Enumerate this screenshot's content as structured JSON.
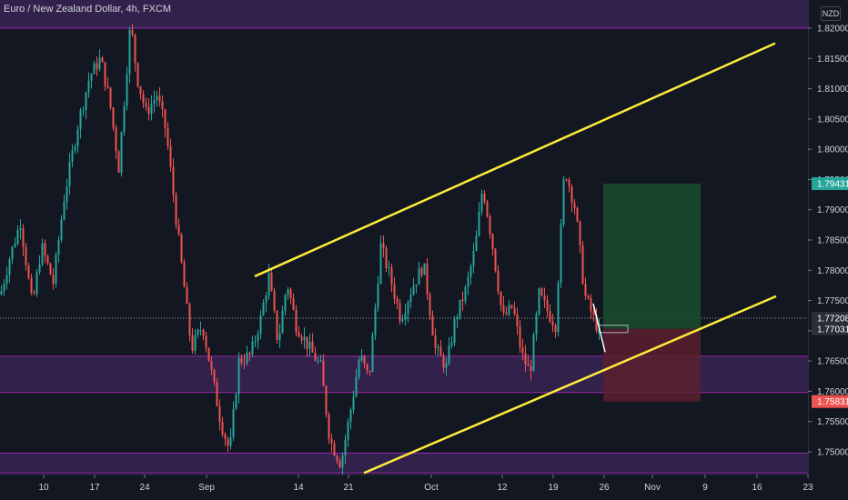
{
  "header": {
    "title": "Euro / New Zealand Dollar, 4h, FXCM"
  },
  "currency_badge": "NZD",
  "price_axis": {
    "ticks": [
      "1.82000",
      "1.81500",
      "1.81000",
      "1.80500",
      "1.80000",
      "1.79500",
      "1.79000",
      "1.78500",
      "1.78000",
      "1.77500",
      "1.77000",
      "1.76500",
      "1.76000",
      "1.75500",
      "1.75000"
    ],
    "markers": {
      "take_profit": {
        "label": "1.79431",
        "color": "#26a69a"
      },
      "last_price": {
        "label": "1.77208",
        "color": "#2a2e39"
      },
      "entry": {
        "label": "1.77031",
        "color": "#2a2e39"
      },
      "stop_loss": {
        "label": "1.75831",
        "color": "#ef5350"
      }
    }
  },
  "time_axis": {
    "labels": [
      "10",
      "17",
      "24",
      "Sep",
      "14",
      "21",
      "Oct",
      "12",
      "19",
      "26",
      "Nov",
      "9",
      "16",
      "23"
    ]
  },
  "colors": {
    "background": "#131722",
    "up_candle": "#26a69a",
    "down_candle": "#ef5350",
    "zone_fill": "#4a2a6e",
    "zone_line": "#9c27b0",
    "trendline": "#ffeb3b",
    "profit_box": "#1b4d2e",
    "loss_box": "#5a1f2e"
  },
  "chart_data": {
    "type": "candlestick",
    "title": "Euro / New Zealand Dollar, 4h, FXCM",
    "ylim": [
      1.7465,
      1.8225
    ],
    "close_path": [
      [
        0,
        1.776
      ],
      [
        10,
        1.782
      ],
      [
        22,
        1.788
      ],
      [
        35,
        1.774
      ],
      [
        45,
        1.784
      ],
      [
        58,
        1.778
      ],
      [
        70,
        1.792
      ],
      [
        85,
        1.804
      ],
      [
        98,
        1.812
      ],
      [
        110,
        1.815
      ],
      [
        120,
        1.808
      ],
      [
        130,
        1.797
      ],
      [
        143,
        1.821
      ],
      [
        150,
        1.812
      ],
      [
        160,
        1.806
      ],
      [
        172,
        1.809
      ],
      [
        182,
        1.803
      ],
      [
        195,
        1.786
      ],
      [
        210,
        1.767
      ],
      [
        222,
        1.771
      ],
      [
        232,
        1.763
      ],
      [
        242,
        1.755
      ],
      [
        252,
        1.75
      ],
      [
        262,
        1.765
      ],
      [
        275,
        1.766
      ],
      [
        286,
        1.772
      ],
      [
        295,
        1.779
      ],
      [
        305,
        1.768
      ],
      [
        315,
        1.778
      ],
      [
        325,
        1.771
      ],
      [
        340,
        1.767
      ],
      [
        352,
        1.764
      ],
      [
        362,
        1.752
      ],
      [
        374,
        1.748
      ],
      [
        385,
        1.757
      ],
      [
        395,
        1.766
      ],
      [
        405,
        1.762
      ],
      [
        418,
        1.784
      ],
      [
        428,
        1.779
      ],
      [
        440,
        1.772
      ],
      [
        452,
        1.777
      ],
      [
        465,
        1.781
      ],
      [
        478,
        1.767
      ],
      [
        490,
        1.764
      ],
      [
        500,
        1.772
      ],
      [
        512,
        1.777
      ],
      [
        522,
        1.784
      ],
      [
        530,
        1.794
      ],
      [
        540,
        1.785
      ],
      [
        552,
        1.772
      ],
      [
        563,
        1.774
      ],
      [
        573,
        1.766
      ],
      [
        582,
        1.763
      ],
      [
        592,
        1.776
      ],
      [
        602,
        1.773
      ],
      [
        610,
        1.771
      ],
      [
        620,
        1.797
      ],
      [
        632,
        1.79
      ],
      [
        642,
        1.776
      ],
      [
        652,
        1.772
      ],
      [
        658,
        1.77
      ]
    ],
    "trend_channel": {
      "upper": [
        [
          280,
          1.779
        ],
        [
          852,
          1.8175
        ]
      ],
      "lower": [
        [
          400,
          1.7465
        ],
        [
          853,
          1.7757
        ]
      ]
    },
    "zones": [
      [
        1.82,
        1.8256
      ],
      [
        1.7598,
        1.7658
      ],
      [
        1.7465,
        1.7498
      ]
    ],
    "position": {
      "entry": 1.77031,
      "take_profit": 1.79431,
      "stop_loss": 1.75831
    },
    "last_price": 1.77208
  }
}
